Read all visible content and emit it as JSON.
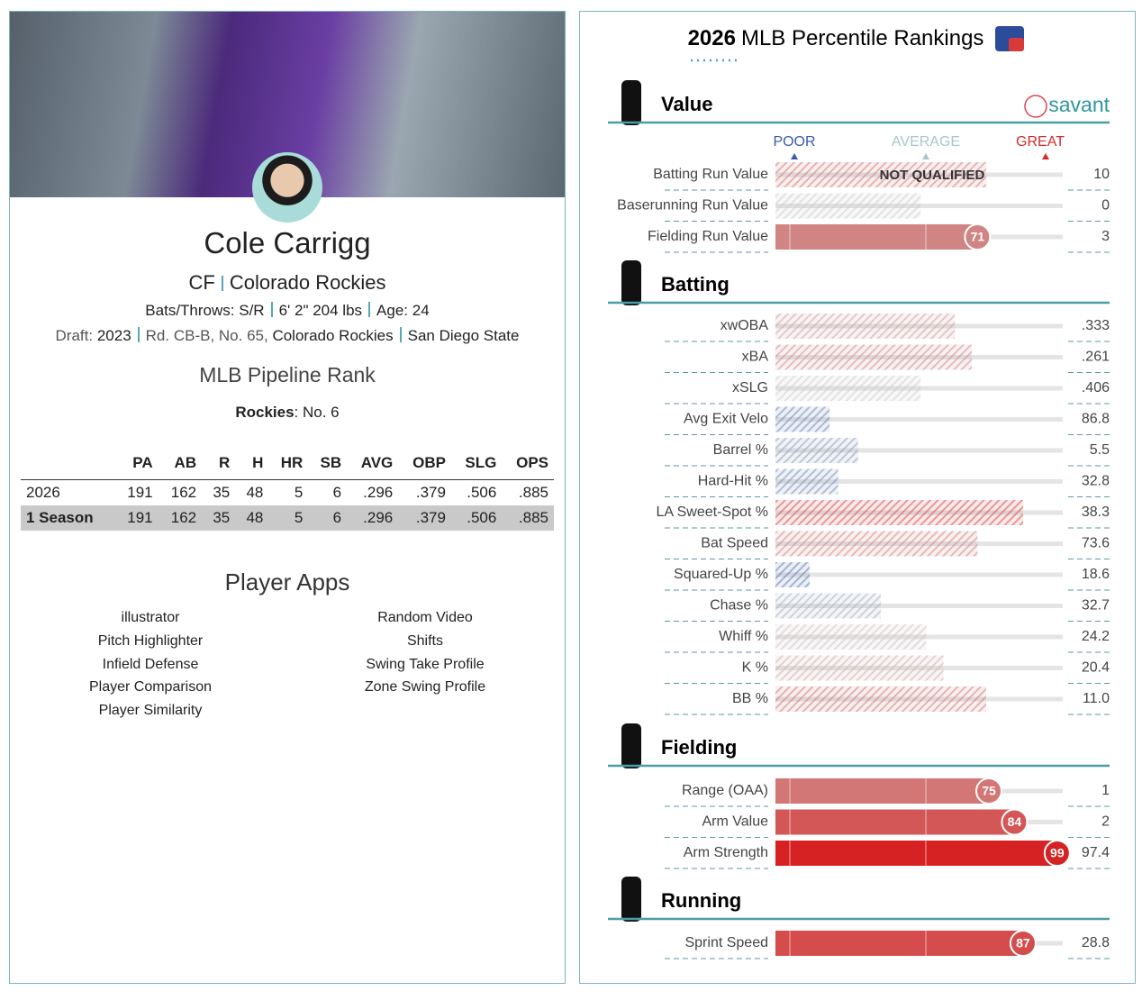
{
  "player": {
    "name": "Cole Carrigg",
    "position": "CF",
    "team": "Colorado Rockies",
    "bats_throws_label": "Bats/Throws:",
    "bats_throws": "S/R",
    "height_weight": "6' 2\" 204 lbs",
    "age_label": "Age:",
    "age": 24,
    "draft_label": "Draft:",
    "draft_year": "2023",
    "draft_pick": "Rd. CB-B, No. 65,",
    "draft_team": "Colorado Rockies",
    "school": "San Diego State"
  },
  "pipeline": {
    "title": "MLB Pipeline Rank",
    "team": "Rockies",
    "rank": ": No. 6"
  },
  "stats_table": {
    "columns": [
      "PA",
      "AB",
      "R",
      "H",
      "HR",
      "SB",
      "AVG",
      "OBP",
      "SLG",
      "OPS"
    ],
    "rows": [
      {
        "label": "2026",
        "values": [
          "191",
          "162",
          "35",
          "48",
          "5",
          "6",
          ".296",
          ".379",
          ".506",
          ".885"
        ]
      },
      {
        "label": "1 Season",
        "values": [
          "191",
          "162",
          "35",
          "48",
          "5",
          "6",
          ".296",
          ".379",
          ".506",
          ".885"
        ]
      }
    ]
  },
  "apps": {
    "title": "Player Apps",
    "left": [
      "illustrator",
      "Pitch Highlighter",
      "Infield Defense",
      "Player Comparison",
      "Player Similarity"
    ],
    "right": [
      "Random Video",
      "Shifts",
      "Swing Take Profile",
      "Zone Swing Profile"
    ]
  },
  "rankings": {
    "year": "2026",
    "title": "MLB Percentile Rankings",
    "brand": "savant",
    "scale_labels": {
      "poor": "POOR",
      "average": "AVERAGE",
      "great": "GREAT"
    },
    "sections": [
      {
        "name": "Value",
        "metrics": [
          {
            "label": "Batting Run Value",
            "value": "10",
            "percentile": 74,
            "qualified": false,
            "note": "NOT QUALIFIED"
          },
          {
            "label": "Baserunning Run Value",
            "value": "0",
            "percentile": 51,
            "qualified": false
          },
          {
            "label": "Fielding Run Value",
            "value": "3",
            "percentile": 71,
            "qualified": true
          }
        ]
      },
      {
        "name": "Batting",
        "metrics": [
          {
            "label": "xwOBA",
            "value": ".333",
            "percentile": 63,
            "qualified": false
          },
          {
            "label": "xBA",
            "value": ".261",
            "percentile": 69,
            "qualified": false
          },
          {
            "label": "xSLG",
            "value": ".406",
            "percentile": 51,
            "qualified": false
          },
          {
            "label": "Avg Exit Velo",
            "value": "86.8",
            "percentile": 19,
            "qualified": false
          },
          {
            "label": "Barrel %",
            "value": "5.5",
            "percentile": 29,
            "qualified": false
          },
          {
            "label": "Hard-Hit %",
            "value": "32.8",
            "percentile": 22,
            "qualified": false
          },
          {
            "label": "LA Sweet-Spot %",
            "value": "38.3",
            "percentile": 87,
            "qualified": false
          },
          {
            "label": "Bat Speed",
            "value": "73.6",
            "percentile": 71,
            "qualified": false
          },
          {
            "label": "Squared-Up %",
            "value": "18.6",
            "percentile": 12,
            "qualified": false
          },
          {
            "label": "Chase %",
            "value": "32.7",
            "percentile": 37,
            "qualified": false
          },
          {
            "label": "Whiff %",
            "value": "24.2",
            "percentile": 53,
            "qualified": false
          },
          {
            "label": "K %",
            "value": "20.4",
            "percentile": 59,
            "qualified": false
          },
          {
            "label": "BB %",
            "value": "11.0",
            "percentile": 74,
            "qualified": false
          }
        ]
      },
      {
        "name": "Fielding",
        "metrics": [
          {
            "label": "Range (OAA)",
            "value": "1",
            "percentile": 75,
            "qualified": true
          },
          {
            "label": "Arm Value",
            "value": "2",
            "percentile": 84,
            "qualified": true
          },
          {
            "label": "Arm Strength",
            "value": "97.4",
            "percentile": 99,
            "qualified": true
          }
        ]
      },
      {
        "name": "Running",
        "metrics": [
          {
            "label": "Sprint Speed",
            "value": "28.8",
            "percentile": 87,
            "qualified": true
          }
        ]
      }
    ]
  }
}
